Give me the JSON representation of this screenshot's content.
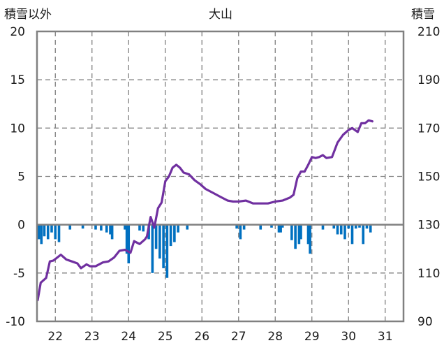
{
  "chart_data": {
    "type": "line+bar",
    "title": "大山",
    "left_axis": {
      "label": "積雪以外",
      "range": [
        -10,
        20
      ],
      "ticks": [
        "-10",
        "-5",
        "0",
        "5",
        "10",
        "15",
        "20"
      ]
    },
    "right_axis": {
      "label": "積雪",
      "range": [
        90,
        210
      ],
      "ticks": [
        "90",
        "110",
        "130",
        "150",
        "170",
        "190",
        "210"
      ]
    },
    "x_axis": {
      "range": [
        21.5,
        31.5
      ],
      "ticks": [
        "22",
        "23",
        "24",
        "25",
        "26",
        "27",
        "28",
        "29",
        "30",
        "31"
      ]
    },
    "grid": true,
    "colors": {
      "line": "#7030a0",
      "bars": "#0070c0",
      "zero_line": "#808080",
      "frame": "#808080",
      "grid": "#808080"
    },
    "series": [
      {
        "kind": "line",
        "axis": "left",
        "x": [
          21.52,
          21.6,
          21.75,
          21.85,
          21.95,
          22.05,
          22.15,
          22.3,
          22.45,
          22.6,
          22.7,
          22.85,
          22.95,
          23.1,
          23.3,
          23.45,
          23.6,
          23.75,
          23.9,
          24.05,
          24.15,
          24.3,
          24.45,
          24.5,
          24.6,
          24.7,
          24.8,
          24.9,
          25.0,
          25.1,
          25.2,
          25.3,
          25.4,
          25.5,
          25.65,
          25.8,
          25.95,
          26.1,
          26.3,
          26.5,
          26.7,
          26.85,
          27.0,
          27.2,
          27.4,
          27.6,
          27.8,
          28.0,
          28.2,
          28.4,
          28.5,
          28.6,
          28.7,
          28.8,
          28.9,
          29.0,
          29.1,
          29.2,
          29.3,
          29.4,
          29.55,
          29.7,
          29.85,
          30.0,
          30.1,
          30.25,
          30.35,
          30.45,
          30.55,
          30.65
        ],
        "y": [
          -7.8,
          -6.0,
          -5.5,
          -3.8,
          -3.7,
          -3.4,
          -3.1,
          -3.6,
          -3.8,
          -4.0,
          -4.5,
          -4.1,
          -4.3,
          -4.3,
          -3.9,
          -3.8,
          -3.4,
          -2.7,
          -2.6,
          -2.9,
          -1.7,
          -2.0,
          -1.5,
          -1.2,
          0.8,
          -0.3,
          1.7,
          2.3,
          4.5,
          5.0,
          5.9,
          6.2,
          5.9,
          5.4,
          5.2,
          4.6,
          4.2,
          3.7,
          3.3,
          2.9,
          2.5,
          2.4,
          2.4,
          2.5,
          2.2,
          2.2,
          2.2,
          2.4,
          2.5,
          2.8,
          3.1,
          4.8,
          5.5,
          5.5,
          6.2,
          7.0,
          6.9,
          7.0,
          7.2,
          6.9,
          7.0,
          8.5,
          9.3,
          9.8,
          10.0,
          9.6,
          10.5,
          10.5,
          10.8,
          10.7
        ]
      },
      {
        "kind": "bar",
        "axis": "left",
        "x": [
          21.55,
          21.62,
          21.7,
          21.8,
          21.9,
          22.0,
          22.1,
          22.4,
          22.75,
          23.1,
          23.25,
          23.4,
          23.5,
          23.55,
          23.9,
          23.95,
          24.0,
          24.3,
          24.4,
          24.55,
          24.65,
          24.75,
          24.85,
          24.95,
          25.05,
          25.15,
          25.25,
          25.35,
          25.6,
          26.95,
          27.05,
          27.15,
          27.6,
          27.9,
          28.1,
          28.15,
          28.2,
          28.45,
          28.55,
          28.65,
          28.7,
          28.9,
          28.95,
          29.3,
          29.6,
          29.7,
          29.8,
          29.9,
          30.0,
          30.1,
          30.2,
          30.3,
          30.4,
          30.5,
          30.6
        ],
        "y": [
          -1.5,
          -2.0,
          -1.2,
          -1.5,
          -0.8,
          -1.5,
          -1.8,
          -0.5,
          -0.4,
          -0.5,
          -0.6,
          -0.8,
          -1.0,
          -1.5,
          -0.5,
          -3.0,
          -4.0,
          -0.6,
          -0.7,
          -1.5,
          -5.0,
          -2.5,
          -3.5,
          -4.5,
          -5.5,
          -2.2,
          -1.8,
          -0.8,
          -0.5,
          -0.4,
          -1.5,
          -0.5,
          -0.5,
          -0.3,
          -0.8,
          -0.8,
          -0.3,
          -1.6,
          -2.5,
          -2.0,
          -1.5,
          -2.0,
          -3.0,
          -0.5,
          -0.4,
          -1.0,
          -1.0,
          -1.5,
          -0.4,
          -2.0,
          -0.4,
          -0.3,
          -2.0,
          -0.4,
          -0.8
        ]
      }
    ]
  }
}
